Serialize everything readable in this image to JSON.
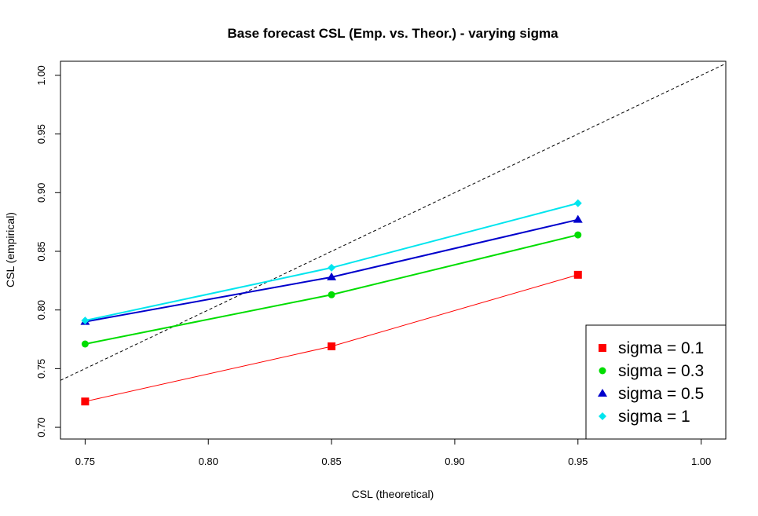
{
  "chart_data": {
    "type": "line",
    "title": "Base forecast CSL (Emp. vs. Theor.) - varying sigma",
    "xlabel": "CSL (theoretical)",
    "ylabel": "CSL (empirical)",
    "xlim": [
      0.74,
      1.01
    ],
    "ylim": [
      0.69,
      1.012
    ],
    "x_ticks": [
      "0.75",
      "0.80",
      "0.85",
      "0.90",
      "0.95",
      "1.00"
    ],
    "y_ticks": [
      "0.70",
      "0.75",
      "0.80",
      "0.85",
      "0.90",
      "0.95",
      "1.00"
    ],
    "x": [
      0.75,
      0.85,
      0.95
    ],
    "reference_line": {
      "slope": 1,
      "intercept": 0,
      "style": "dashed",
      "color": "#000000"
    },
    "legend_position": "bottom-right",
    "grid": false,
    "series": [
      {
        "name": "sigma = 0.1",
        "values": [
          0.722,
          0.769,
          0.83
        ],
        "color": "#ff0000",
        "marker": "square",
        "line_width": 1
      },
      {
        "name": "sigma = 0.3",
        "values": [
          0.771,
          0.813,
          0.864
        ],
        "color": "#00dd00",
        "marker": "circle",
        "line_width": 2
      },
      {
        "name": "sigma = 0.5",
        "values": [
          0.79,
          0.828,
          0.877
        ],
        "color": "#0000cc",
        "marker": "triangle",
        "line_width": 2
      },
      {
        "name": "sigma = 1",
        "values": [
          0.791,
          0.836,
          0.891
        ],
        "color": "#00e5ee",
        "marker": "diamond",
        "line_width": 2
      }
    ]
  }
}
